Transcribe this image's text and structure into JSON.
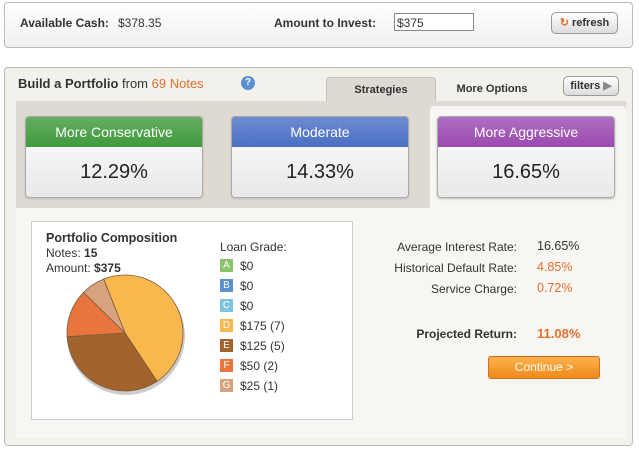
{
  "header": {
    "available_cash_label": "Available Cash:",
    "available_cash": "$378.35",
    "amount_to_invest_label": "Amount to Invest:",
    "amount_to_invest": "$375",
    "refresh": "refresh"
  },
  "portfolio": {
    "title": "Build a Portfolio",
    "from": "from",
    "notes_count": "69 Notes",
    "tabs": [
      "Strategies",
      "More Options"
    ],
    "filters": "filters",
    "strategies": [
      {
        "name": "More Conservative",
        "rate": "12.29%",
        "color": "#3f9a3c"
      },
      {
        "name": "Moderate",
        "rate": "14.33%",
        "color": "#4a6fc4"
      },
      {
        "name": "More Aggressive",
        "rate": "16.65%",
        "color": "#9b4bb0"
      }
    ],
    "composition": {
      "title": "Portfolio Composition",
      "notes_label": "Notes:",
      "notes": "15",
      "amount_label": "Amount:",
      "amount": "$375",
      "loan_grade_label": "Loan Grade:",
      "grades": [
        {
          "letter": "A",
          "label": "$0",
          "amount": 0,
          "color": "#8cc26c"
        },
        {
          "letter": "B",
          "label": "$0",
          "amount": 0,
          "color": "#5b8fd2"
        },
        {
          "letter": "C",
          "label": "$0",
          "amount": 0,
          "color": "#7fc3df"
        },
        {
          "letter": "D",
          "label": "$175 (7)",
          "amount": 175,
          "color": "#f8b84e"
        },
        {
          "letter": "E",
          "label": "$125 (5)",
          "amount": 125,
          "color": "#a2632c"
        },
        {
          "letter": "F",
          "label": "$50 (2)",
          "amount": 50,
          "color": "#e8763c"
        },
        {
          "letter": "G",
          "label": "$25 (1)",
          "amount": 25,
          "color": "#d9a27e"
        }
      ]
    },
    "summary": [
      {
        "label": "Average Interest Rate:",
        "value": "16.65%",
        "color": "#333333"
      },
      {
        "label": "Historical Default Rate:",
        "value": "4.85%",
        "color": "#e0702a"
      },
      {
        "label": "Service Charge:",
        "value": "0.72%",
        "color": "#e0702a"
      }
    ],
    "projected_return_label": "Projected Return:",
    "projected_return": "11.08%",
    "continue": "Continue >"
  }
}
